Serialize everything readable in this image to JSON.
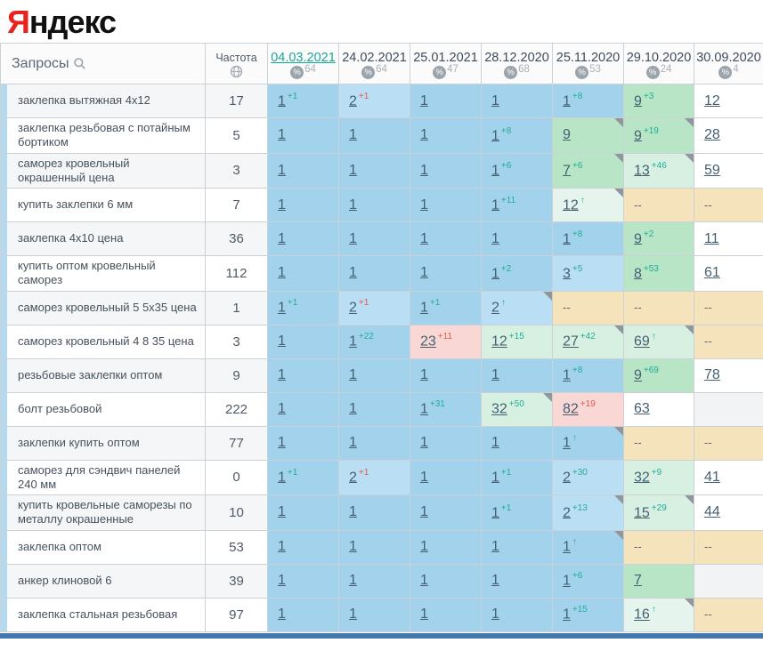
{
  "logo": {
    "first_letter": "Я",
    "rest": "ндекс"
  },
  "colors": {
    "logo_red": "#e8231d",
    "accent_active_date": "#18a893",
    "delta_up": "#1fae95",
    "delta_down": "#e25a51",
    "bottom_bar": "#4477ad",
    "tones": {
      "b1": "#a3d2ec",
      "b2": "#badef3",
      "g1": "#b7e5c6",
      "g2": "#d8f0e2",
      "g3": "#e5f5ed",
      "r": "#f8d7d4",
      "na": "#f5e3bb",
      "e": "#f2f3f5"
    }
  },
  "table": {
    "queries_header": "Запросы",
    "frequency_header": "Частота",
    "dates": [
      {
        "label": "04.03.2021",
        "count": "64",
        "active": true
      },
      {
        "label": "24.02.2021",
        "count": "64",
        "active": false
      },
      {
        "label": "25.01.2021",
        "count": "47",
        "active": false
      },
      {
        "label": "28.12.2020",
        "count": "68",
        "active": false
      },
      {
        "label": "25.11.2020",
        "count": "53",
        "active": false
      },
      {
        "label": "29.10.2020",
        "count": "24",
        "active": false
      },
      {
        "label": "30.09.2020",
        "count": "4",
        "active": false
      }
    ],
    "rows": [
      {
        "query": "заклепка вытяжная 4x12",
        "frequency": "17",
        "cells": [
          {
            "v": "1",
            "d": "+1",
            "dir": "up",
            "t": "b1"
          },
          {
            "v": "2",
            "d": "+1",
            "dir": "down",
            "t": "b2"
          },
          {
            "v": "1",
            "t": "b1"
          },
          {
            "v": "1",
            "t": "b1"
          },
          {
            "v": "1",
            "d": "+8",
            "dir": "up",
            "t": "b1"
          },
          {
            "v": "9",
            "d": "+3",
            "dir": "up",
            "t": "g1"
          },
          {
            "v": "12",
            "t": "w"
          }
        ]
      },
      {
        "query": "заклепка резьбовая с потайным бортиком",
        "frequency": "5",
        "cells": [
          {
            "v": "1",
            "t": "b1"
          },
          {
            "v": "1",
            "t": "b1"
          },
          {
            "v": "1",
            "t": "b1"
          },
          {
            "v": "1",
            "d": "+8",
            "dir": "up",
            "t": "b1"
          },
          {
            "v": "9",
            "t": "g1",
            "m": true
          },
          {
            "v": "9",
            "d": "+19",
            "dir": "up",
            "t": "g1",
            "m": true
          },
          {
            "v": "28",
            "t": "w"
          }
        ]
      },
      {
        "query": "саморез кровельный окрашенный цена",
        "frequency": "3",
        "cells": [
          {
            "v": "1",
            "t": "b1"
          },
          {
            "v": "1",
            "t": "b1"
          },
          {
            "v": "1",
            "t": "b1"
          },
          {
            "v": "1",
            "d": "+6",
            "dir": "up",
            "t": "b1"
          },
          {
            "v": "7",
            "d": "+6",
            "dir": "up",
            "t": "g1",
            "m": true
          },
          {
            "v": "13",
            "d": "+46",
            "dir": "up",
            "t": "g2",
            "m": true
          },
          {
            "v": "59",
            "t": "w"
          }
        ]
      },
      {
        "query": "купить заклепки 6 мм",
        "frequency": "7",
        "cells": [
          {
            "v": "1",
            "t": "b1"
          },
          {
            "v": "1",
            "t": "b1"
          },
          {
            "v": "1",
            "t": "b1"
          },
          {
            "v": "1",
            "d": "+11",
            "dir": "up",
            "t": "b1"
          },
          {
            "v": "12",
            "d": "↑",
            "dir": "up",
            "t": "g3",
            "m": true
          },
          {
            "v": "--",
            "t": "na"
          },
          {
            "v": "--",
            "t": "na"
          }
        ]
      },
      {
        "query": "заклепка 4x10 цена",
        "frequency": "36",
        "cells": [
          {
            "v": "1",
            "t": "b1"
          },
          {
            "v": "1",
            "t": "b1"
          },
          {
            "v": "1",
            "t": "b1"
          },
          {
            "v": "1",
            "t": "b1"
          },
          {
            "v": "1",
            "d": "+8",
            "dir": "up",
            "t": "b1"
          },
          {
            "v": "9",
            "d": "+2",
            "dir": "up",
            "t": "g1"
          },
          {
            "v": "11",
            "t": "w"
          }
        ]
      },
      {
        "query": "купить оптом кровельный саморез",
        "frequency": "112",
        "cells": [
          {
            "v": "1",
            "t": "b1"
          },
          {
            "v": "1",
            "t": "b1"
          },
          {
            "v": "1",
            "t": "b1"
          },
          {
            "v": "1",
            "d": "+2",
            "dir": "up",
            "t": "b1"
          },
          {
            "v": "3",
            "d": "+5",
            "dir": "up",
            "t": "b2"
          },
          {
            "v": "8",
            "d": "+53",
            "dir": "up",
            "t": "g1"
          },
          {
            "v": "61",
            "t": "w"
          }
        ]
      },
      {
        "query": "саморез кровельный 5 5x35 цена",
        "frequency": "1",
        "cells": [
          {
            "v": "1",
            "d": "+1",
            "dir": "up",
            "t": "b1"
          },
          {
            "v": "2",
            "d": "+1",
            "dir": "down",
            "t": "b2"
          },
          {
            "v": "1",
            "d": "+1",
            "dir": "up",
            "t": "b1"
          },
          {
            "v": "2",
            "d": "↑",
            "dir": "up",
            "t": "b2",
            "m": true
          },
          {
            "v": "--",
            "t": "na"
          },
          {
            "v": "--",
            "t": "na"
          },
          {
            "v": "--",
            "t": "na"
          }
        ]
      },
      {
        "query": "саморез кровельный 4 8 35 цена",
        "frequency": "3",
        "cells": [
          {
            "v": "1",
            "t": "b1"
          },
          {
            "v": "1",
            "d": "+22",
            "dir": "up",
            "t": "b1"
          },
          {
            "v": "23",
            "d": "+11",
            "dir": "down",
            "t": "r"
          },
          {
            "v": "12",
            "d": "+15",
            "dir": "up",
            "t": "g2"
          },
          {
            "v": "27",
            "d": "+42",
            "dir": "up",
            "t": "g2",
            "m": true
          },
          {
            "v": "69",
            "d": "↑",
            "dir": "up",
            "t": "g2",
            "m": true
          },
          {
            "v": "--",
            "t": "na"
          }
        ]
      },
      {
        "query": "резьбовые заклепки оптом",
        "frequency": "9",
        "cells": [
          {
            "v": "1",
            "t": "b1"
          },
          {
            "v": "1",
            "t": "b1"
          },
          {
            "v": "1",
            "t": "b1"
          },
          {
            "v": "1",
            "t": "b1"
          },
          {
            "v": "1",
            "d": "+8",
            "dir": "up",
            "t": "b1"
          },
          {
            "v": "9",
            "d": "+69",
            "dir": "up",
            "t": "g1"
          },
          {
            "v": "78",
            "t": "w"
          }
        ]
      },
      {
        "query": "болт резьбовой",
        "frequency": "222",
        "cells": [
          {
            "v": "1",
            "t": "b1"
          },
          {
            "v": "1",
            "t": "b1"
          },
          {
            "v": "1",
            "d": "+31",
            "dir": "up",
            "t": "b1"
          },
          {
            "v": "32",
            "d": "+50",
            "dir": "up",
            "t": "g2",
            "m": true
          },
          {
            "v": "82",
            "d": "+19",
            "dir": "down",
            "t": "r"
          },
          {
            "v": "63",
            "t": "w"
          },
          {
            "v": "",
            "t": "e"
          }
        ]
      },
      {
        "query": "заклепки купить оптом",
        "frequency": "77",
        "cells": [
          {
            "v": "1",
            "t": "b1"
          },
          {
            "v": "1",
            "t": "b1"
          },
          {
            "v": "1",
            "t": "b1"
          },
          {
            "v": "1",
            "t": "b1"
          },
          {
            "v": "1",
            "d": "↑",
            "dir": "up",
            "t": "b1",
            "m": true
          },
          {
            "v": "--",
            "t": "na"
          },
          {
            "v": "--",
            "t": "na"
          }
        ]
      },
      {
        "query": "саморез для сэндвич панелей 240 мм",
        "frequency": "0",
        "cells": [
          {
            "v": "1",
            "d": "+1",
            "dir": "up",
            "t": "b1"
          },
          {
            "v": "2",
            "d": "+1",
            "dir": "down",
            "t": "b2"
          },
          {
            "v": "1",
            "t": "b1"
          },
          {
            "v": "1",
            "d": "+1",
            "dir": "up",
            "t": "b1"
          },
          {
            "v": "2",
            "d": "+30",
            "dir": "up",
            "t": "b2"
          },
          {
            "v": "32",
            "d": "+9",
            "dir": "up",
            "t": "g2"
          },
          {
            "v": "41",
            "t": "w"
          }
        ]
      },
      {
        "query": "купить кровельные саморезы по металлу окрашенные",
        "frequency": "10",
        "cells": [
          {
            "v": "1",
            "t": "b1"
          },
          {
            "v": "1",
            "t": "b1"
          },
          {
            "v": "1",
            "t": "b1"
          },
          {
            "v": "1",
            "d": "+1",
            "dir": "up",
            "t": "b1"
          },
          {
            "v": "2",
            "d": "+13",
            "dir": "up",
            "t": "b2",
            "m": true
          },
          {
            "v": "15",
            "d": "+29",
            "dir": "up",
            "t": "g2",
            "m": true
          },
          {
            "v": "44",
            "t": "w"
          }
        ]
      },
      {
        "query": "заклепка оптом",
        "frequency": "53",
        "cells": [
          {
            "v": "1",
            "t": "b1"
          },
          {
            "v": "1",
            "t": "b1"
          },
          {
            "v": "1",
            "t": "b1"
          },
          {
            "v": "1",
            "t": "b1"
          },
          {
            "v": "1",
            "d": "↑",
            "dir": "up",
            "t": "b1",
            "m": true
          },
          {
            "v": "--",
            "t": "na"
          },
          {
            "v": "--",
            "t": "na"
          }
        ]
      },
      {
        "query": "анкер клиновой 6",
        "frequency": "39",
        "cells": [
          {
            "v": "1",
            "t": "b1"
          },
          {
            "v": "1",
            "t": "b1"
          },
          {
            "v": "1",
            "t": "b1"
          },
          {
            "v": "1",
            "t": "b1"
          },
          {
            "v": "1",
            "d": "+6",
            "dir": "up",
            "t": "b1"
          },
          {
            "v": "7",
            "t": "g1"
          },
          {
            "v": "",
            "t": "e"
          }
        ]
      },
      {
        "query": "заклепка стальная резьбовая",
        "frequency": "97",
        "cells": [
          {
            "v": "1",
            "t": "b1"
          },
          {
            "v": "1",
            "t": "b1"
          },
          {
            "v": "1",
            "t": "b1"
          },
          {
            "v": "1",
            "t": "b1"
          },
          {
            "v": "1",
            "d": "+15",
            "dir": "up",
            "t": "b1"
          },
          {
            "v": "16",
            "d": "↑",
            "dir": "up",
            "t": "g3",
            "m": true
          },
          {
            "v": "--",
            "t": "na"
          }
        ]
      }
    ]
  }
}
